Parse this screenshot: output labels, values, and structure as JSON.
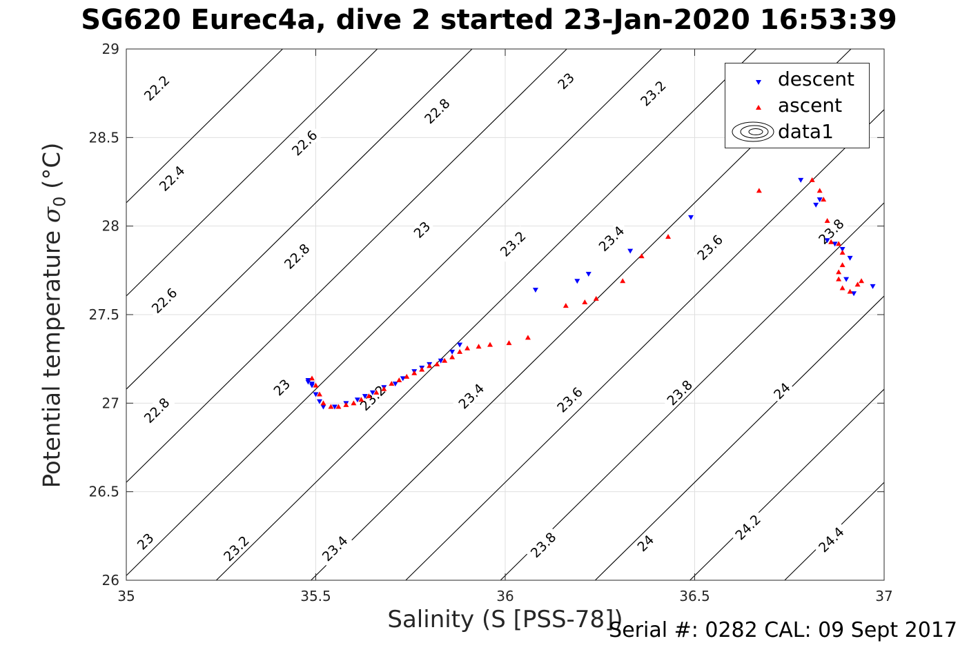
{
  "title": "SG620 Eurec4a, dive 2 started 23-Jan-2020 16:53:39",
  "footer": "Serial #: 0282  CAL: 09 Sept 2017",
  "chart_data": {
    "type": "scatter",
    "title": "SG620 Eurec4a, dive 2 started 23-Jan-2020 16:53:39",
    "xlabel": "Salinity (S [PSS-78])",
    "ylabel_text": "Potential temperature ",
    "ylabel_symbol": "σ",
    "ylabel_sub": "0",
    "ylabel_unit": " (°C)",
    "xlim": [
      35,
      37
    ],
    "ylim": [
      26,
      29
    ],
    "xticks": [
      35,
      35.5,
      36,
      36.5,
      37
    ],
    "xtick_labels": [
      "35",
      "35.5",
      "36",
      "36.5",
      "37"
    ],
    "yticks": [
      26,
      26.5,
      27,
      27.5,
      28,
      28.5,
      29
    ],
    "ytick_labels": [
      "26",
      "26.5",
      "27",
      "27.5",
      "28",
      "28.5",
      "29"
    ],
    "grid": true,
    "legend_position": "top-right",
    "legend": [
      "descent",
      "ascent",
      "data1"
    ],
    "contours": {
      "name": "data1",
      "levels": [
        22.2,
        22.4,
        22.6,
        22.8,
        23.0,
        23.2,
        23.4,
        23.6,
        23.8,
        24.0,
        24.2,
        24.4
      ],
      "labels": [
        {
          "text": "22.2",
          "s": 35.08,
          "t": 28.78
        },
        {
          "text": "22.4",
          "s": 35.12,
          "t": 28.27
        },
        {
          "text": "22.6",
          "s": 35.47,
          "t": 28.47
        },
        {
          "text": "22.6",
          "s": 35.1,
          "t": 27.58
        },
        {
          "text": "22.8",
          "s": 35.82,
          "t": 28.65
        },
        {
          "text": "22.8",
          "s": 35.45,
          "t": 27.83
        },
        {
          "text": "22.8",
          "s": 35.08,
          "t": 26.96
        },
        {
          "text": "23",
          "s": 36.16,
          "t": 28.82
        },
        {
          "text": "23",
          "s": 35.78,
          "t": 27.98
        },
        {
          "text": "23",
          "s": 35.41,
          "t": 27.09
        },
        {
          "text": "23",
          "s": 35.05,
          "t": 26.22
        },
        {
          "text": "23.2",
          "s": 36.39,
          "t": 28.75
        },
        {
          "text": "23.2",
          "s": 36.02,
          "t": 27.9
        },
        {
          "text": "23.2",
          "s": 35.65,
          "t": 27.03
        },
        {
          "text": "23.2",
          "s": 35.29,
          "t": 26.18
        },
        {
          "text": "23.4",
          "s": 36.28,
          "t": 27.93
        },
        {
          "text": "23.4",
          "s": 35.91,
          "t": 27.04
        },
        {
          "text": "23.4",
          "s": 35.55,
          "t": 26.18
        },
        {
          "text": "23.6",
          "s": 36.54,
          "t": 27.88
        },
        {
          "text": "23.6",
          "s": 36.17,
          "t": 27.02
        },
        {
          "text": "23.8",
          "s": 36.86,
          "t": 27.97
        },
        {
          "text": "23.8",
          "s": 36.46,
          "t": 27.06
        },
        {
          "text": "23.8",
          "s": 36.1,
          "t": 26.2
        },
        {
          "text": "24",
          "s": 36.73,
          "t": 27.07
        },
        {
          "text": "24",
          "s": 36.37,
          "t": 26.21
        },
        {
          "text": "24.2",
          "s": 36.64,
          "t": 26.3
        },
        {
          "text": "24.4",
          "s": 36.86,
          "t": 26.23
        }
      ]
    },
    "series": [
      {
        "name": "descent",
        "color": "#0000ff",
        "marker": "triangle-down",
        "points": [
          [
            35.48,
            27.13
          ],
          [
            35.48,
            27.12
          ],
          [
            35.49,
            27.11
          ],
          [
            35.49,
            27.1
          ],
          [
            35.5,
            27.05
          ],
          [
            35.51,
            27.01
          ],
          [
            35.52,
            26.98
          ],
          [
            35.55,
            26.98
          ],
          [
            35.58,
            27.0
          ],
          [
            35.61,
            27.02
          ],
          [
            35.63,
            27.04
          ],
          [
            35.65,
            27.06
          ],
          [
            35.68,
            27.09
          ],
          [
            35.71,
            27.11
          ],
          [
            35.73,
            27.14
          ],
          [
            35.76,
            27.18
          ],
          [
            35.78,
            27.2
          ],
          [
            35.8,
            27.22
          ],
          [
            35.83,
            27.24
          ],
          [
            35.86,
            27.29
          ],
          [
            35.88,
            27.33
          ],
          [
            36.08,
            27.64
          ],
          [
            36.19,
            27.69
          ],
          [
            36.22,
            27.73
          ],
          [
            36.33,
            27.86
          ],
          [
            36.49,
            28.05
          ],
          [
            36.78,
            28.26
          ],
          [
            36.82,
            28.12
          ],
          [
            36.83,
            28.15
          ],
          [
            36.85,
            27.92
          ],
          [
            36.87,
            27.9
          ],
          [
            36.89,
            27.87
          ],
          [
            36.91,
            27.82
          ],
          [
            36.9,
            27.7
          ],
          [
            36.92,
            27.62
          ],
          [
            36.97,
            27.66
          ]
        ]
      },
      {
        "name": "ascent",
        "color": "#ff0000",
        "marker": "triangle-up",
        "points": [
          [
            35.49,
            27.14
          ],
          [
            35.5,
            27.1
          ],
          [
            35.51,
            27.05
          ],
          [
            35.52,
            27.0
          ],
          [
            35.54,
            26.98
          ],
          [
            35.56,
            26.98
          ],
          [
            35.58,
            26.99
          ],
          [
            35.6,
            27.0
          ],
          [
            35.62,
            27.02
          ],
          [
            35.64,
            27.04
          ],
          [
            35.66,
            27.06
          ],
          [
            35.68,
            27.08
          ],
          [
            35.7,
            27.11
          ],
          [
            35.72,
            27.13
          ],
          [
            35.74,
            27.15
          ],
          [
            35.76,
            27.17
          ],
          [
            35.78,
            27.19
          ],
          [
            35.8,
            27.21
          ],
          [
            35.82,
            27.22
          ],
          [
            35.84,
            27.24
          ],
          [
            35.86,
            27.26
          ],
          [
            35.88,
            27.29
          ],
          [
            35.9,
            27.31
          ],
          [
            35.93,
            27.32
          ],
          [
            35.96,
            27.33
          ],
          [
            36.01,
            27.34
          ],
          [
            36.06,
            27.37
          ],
          [
            36.16,
            27.55
          ],
          [
            36.21,
            27.57
          ],
          [
            36.24,
            27.59
          ],
          [
            36.31,
            27.69
          ],
          [
            36.36,
            27.83
          ],
          [
            36.43,
            27.94
          ],
          [
            36.67,
            28.2
          ],
          [
            36.81,
            28.26
          ],
          [
            36.83,
            28.2
          ],
          [
            36.84,
            28.15
          ],
          [
            36.85,
            28.03
          ],
          [
            36.86,
            27.91
          ],
          [
            36.88,
            27.9
          ],
          [
            36.89,
            27.85
          ],
          [
            36.89,
            27.78
          ],
          [
            36.88,
            27.74
          ],
          [
            36.88,
            27.7
          ],
          [
            36.89,
            27.65
          ],
          [
            36.91,
            27.63
          ],
          [
            36.93,
            27.67
          ],
          [
            36.94,
            27.69
          ]
        ]
      }
    ]
  }
}
